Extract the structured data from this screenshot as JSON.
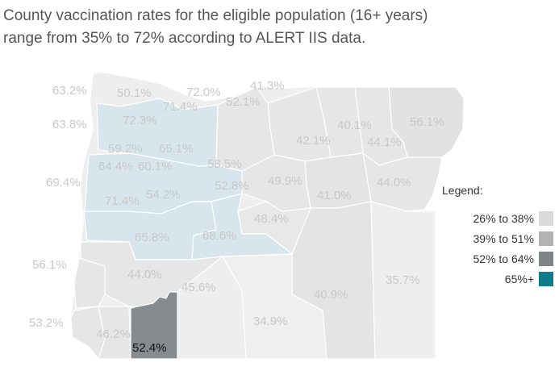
{
  "title": {
    "line1": "County vaccination rates for the eligible population (16+ years)",
    "line2": "range from 35% to 72% according to ALERT IIS data."
  },
  "legend": {
    "title": "Legend:",
    "items": [
      {
        "label": "26% to 38%",
        "color": "#d9d9d9"
      },
      {
        "label": "39% to 51%",
        "color": "#b3b3b3"
      },
      {
        "label": "52% to 64%",
        "color": "#7f8487"
      },
      {
        "label": "65%+",
        "color": "#0f7c8c"
      }
    ]
  },
  "colors": {
    "light": "#eeeeee",
    "mid": "#e2e2e2",
    "tint": "#d6e6ec",
    "highlight": "#868b8f",
    "label": "#c8c8c8"
  },
  "counties": {
    "clatsop": "50.1%",
    "columbia": "72.0%",
    "tillamook": "63.2%",
    "washington": "72.3%",
    "multnomah": "71.4%",
    "hood_river": "41.3%",
    "wasco_north": "52.1%",
    "lincoln_north": "63.8%",
    "yamhill": "59.2%",
    "clackamas": "65.1%",
    "polk": "64.4%",
    "marion": "60.1%",
    "lincoln": "69.4%",
    "benton": "71.4%",
    "linn": "54.2%",
    "jefferson": "58.5%",
    "wasco": "52.8%",
    "sherman": "42.1%",
    "gilliam": "40.1%",
    "morrow": "44.1%",
    "umatilla": "56.1%",
    "wheeler": "49.9%",
    "grant": "41.0%",
    "union_baker": "44.0%",
    "lane": "65.8%",
    "deschutes": "68.6%",
    "crook": "48.4%",
    "coos": "56.1%",
    "douglas": "44.0%",
    "malheur": "35.7%",
    "harney": "40.9%",
    "lake": "34.9%",
    "jackson": "45.6%",
    "curry": "53.2%",
    "josephine": "46.2%",
    "klamath_sel": "52.4%"
  }
}
